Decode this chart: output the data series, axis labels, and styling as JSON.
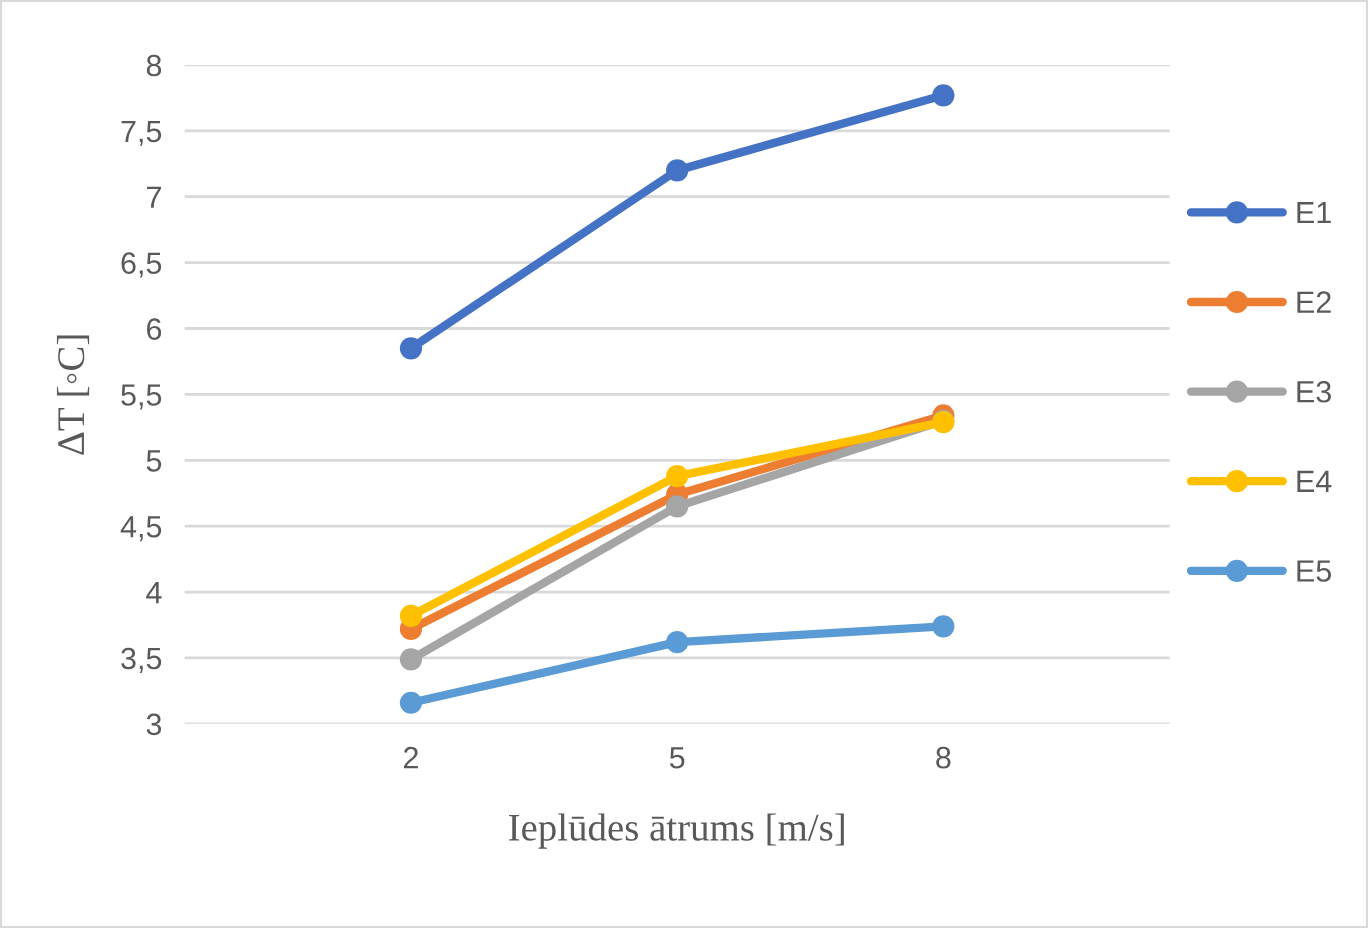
{
  "chart_data": {
    "type": "line",
    "xlabel": "Ieplūdes ātrums [m/s]",
    "ylabel": "ΔT [◦C]",
    "categories": [
      "2",
      "5",
      "8"
    ],
    "series": [
      {
        "name": "E1",
        "color": "#4472c4",
        "values": [
          5.85,
          7.2,
          7.77
        ]
      },
      {
        "name": "E2",
        "color": "#ed7d31",
        "values": [
          3.72,
          4.74,
          5.34
        ]
      },
      {
        "name": "E3",
        "color": "#a5a5a5",
        "values": [
          3.49,
          4.65,
          5.3
        ]
      },
      {
        "name": "E4",
        "color": "#ffc000",
        "values": [
          3.82,
          4.88,
          5.29
        ]
      },
      {
        "name": "E5",
        "color": "#5b9bd5",
        "values": [
          3.16,
          3.62,
          3.74
        ]
      }
    ],
    "ylim": [
      3,
      8
    ],
    "yticks": [
      3,
      {
        "value": 3.5,
        "label": "3,5"
      },
      4,
      {
        "value": 4.5,
        "label": "4,5"
      },
      5,
      {
        "value": 5.5,
        "label": "5,5"
      },
      6,
      {
        "value": 6.5,
        "label": "6,5"
      },
      7,
      {
        "value": 7.5,
        "label": "7,5"
      },
      8
    ],
    "grid": "y",
    "legend": "right",
    "marker": "circle",
    "line_style": "solid"
  }
}
